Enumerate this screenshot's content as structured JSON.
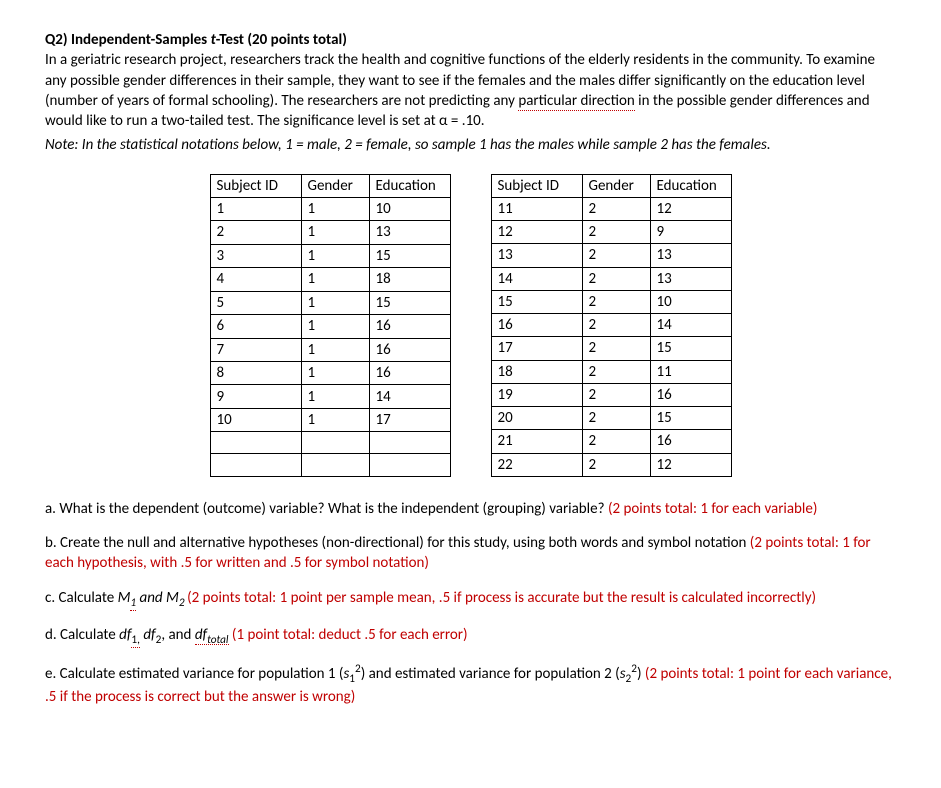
{
  "header": {
    "title": "Q2) Independent-Samples ",
    "title_ital": "t",
    "title_rest": "-Test (20 points total)"
  },
  "intro": {
    "p1a": "In a geriatric research project, researchers track the health and cognitive functions of the elderly residents in the community. To examine any possible gender differences in their sample, they want to see if the females and the males differ significantly on the education level (number of years of formal schooling). The researchers are not predicting any ",
    "p1_dotted": "particular direction",
    "p1b": " in the possible gender differences and would like to run a two-tailed test. The significance level is set at α = .10.",
    "note": "Note: In the statistical notations below, 1 = male, 2 = female, so sample 1 has the males while sample 2 has the females."
  },
  "tableHeaders": {
    "id": "Subject ID",
    "gender": "Gender",
    "edu": "Education"
  },
  "table1": {
    "rows": [
      [
        "1",
        "1",
        "10"
      ],
      [
        "2",
        "1",
        "13"
      ],
      [
        "3",
        "1",
        "15"
      ],
      [
        "4",
        "1",
        "18"
      ],
      [
        "5",
        "1",
        "15"
      ],
      [
        "6",
        "1",
        "16"
      ],
      [
        "7",
        "1",
        "16"
      ],
      [
        "8",
        "1",
        "16"
      ],
      [
        "9",
        "1",
        "14"
      ],
      [
        "10",
        "1",
        "17"
      ],
      [
        "",
        "",
        ""
      ],
      [
        "",
        "",
        ""
      ]
    ]
  },
  "table2": {
    "rows": [
      [
        "11",
        "2",
        "12"
      ],
      [
        "12",
        "2",
        "9"
      ],
      [
        "13",
        "2",
        "13"
      ],
      [
        "14",
        "2",
        "13"
      ],
      [
        "15",
        "2",
        "10"
      ],
      [
        "16",
        "2",
        "14"
      ],
      [
        "17",
        "2",
        "15"
      ],
      [
        "18",
        "2",
        "11"
      ],
      [
        "19",
        "2",
        "16"
      ],
      [
        "20",
        "2",
        "15"
      ],
      [
        "21",
        "2",
        "16"
      ],
      [
        "22",
        "2",
        "12"
      ]
    ]
  },
  "qa": {
    "text": "a. What is the dependent (outcome) variable? What is the independent (grouping) variable? ",
    "red": "(2 points total: 1 for each variable)"
  },
  "qb": {
    "text": "b. Create the null and alternative hypotheses (non-directional) for this study, using both words and symbol notation ",
    "red": "(2 points total: 1 for each hypothesis, with .5 for written and .5 for symbol notation)"
  },
  "qc": {
    "pre": "c. Calculate ",
    "m1": "M",
    "m1sub": "1",
    "and": " and ",
    "m2": "M",
    "m2sub": "2 ",
    "red": "(2 points total: 1 point per sample mean, .5 if process is accurate but the result is calculated incorrectly)"
  },
  "qd": {
    "pre": "d. Calculate ",
    "df1": "df",
    "df1sub": "1,",
    "sp1": " ",
    "df2": "df",
    "df2sub": "2",
    "comma": ", and ",
    "dft": "df",
    "dftsub": "total",
    "sp2": " ",
    "red": "(1 point total: deduct .5 for each error)"
  },
  "qe": {
    "pre": "e. Calculate estimated variance for population 1 (",
    "s1": "s",
    "s1sub": "1",
    "s1sup": "2",
    "mid": ") and estimated variance for population 2 (",
    "s2": "s",
    "s2sub": "2",
    "s2sup": "2",
    "post": ") ",
    "red": "(2 points total: 1 point for each variance, .5 if the process is correct but the answer is wrong)"
  }
}
